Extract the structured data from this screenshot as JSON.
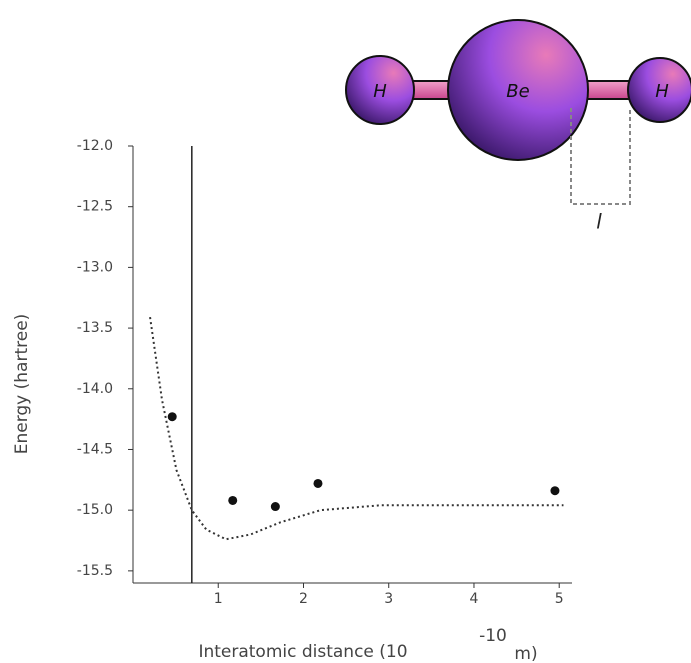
{
  "chart_data": {
    "type": "scatter",
    "y_label": "Energy (hartree)",
    "x_label": "Interatomic distance (10",
    "x_label_exponent": "-10",
    "x_label_suffix": "m)",
    "xlim": [
      0,
      5.15
    ],
    "ylim": [
      -15.6,
      -12.0
    ],
    "xticks": [
      1,
      2,
      3,
      4,
      5
    ],
    "yticks": [
      {
        "value": -12.0,
        "label": "-12.0"
      },
      {
        "value": -12.5,
        "label": "-12.5"
      },
      {
        "value": -13.0,
        "label": "-13.0"
      },
      {
        "value": -13.5,
        "label": "-13.5"
      },
      {
        "value": -14.0,
        "label": "-14.0"
      },
      {
        "value": -14.5,
        "label": "-14.5"
      },
      {
        "value": -15.0,
        "label": "-15.0"
      },
      {
        "value": -15.5,
        "label": "-15.5"
      }
    ],
    "points": {
      "color": "#111",
      "x": [
        0.46,
        1.17,
        1.67,
        2.17,
        4.95
      ],
      "values": [
        -14.23,
        -14.92,
        -14.97,
        -14.78,
        -14.84
      ]
    },
    "curve": {
      "color": "#333",
      "x": [
        0.2,
        0.34,
        0.51,
        0.69,
        0.86,
        1.09,
        1.38,
        1.73,
        2.2,
        2.9,
        3.71,
        5.05
      ],
      "values": [
        -13.41,
        -14.09,
        -14.67,
        -15.0,
        -15.16,
        -15.24,
        -15.2,
        -15.1,
        -15.0,
        -14.96,
        -14.96,
        -14.96
      ]
    },
    "vline": 0.69,
    "diagram_labels": {
      "left_atom": "H",
      "center_atom": "Be",
      "right_atom": "H",
      "length": "l"
    }
  }
}
